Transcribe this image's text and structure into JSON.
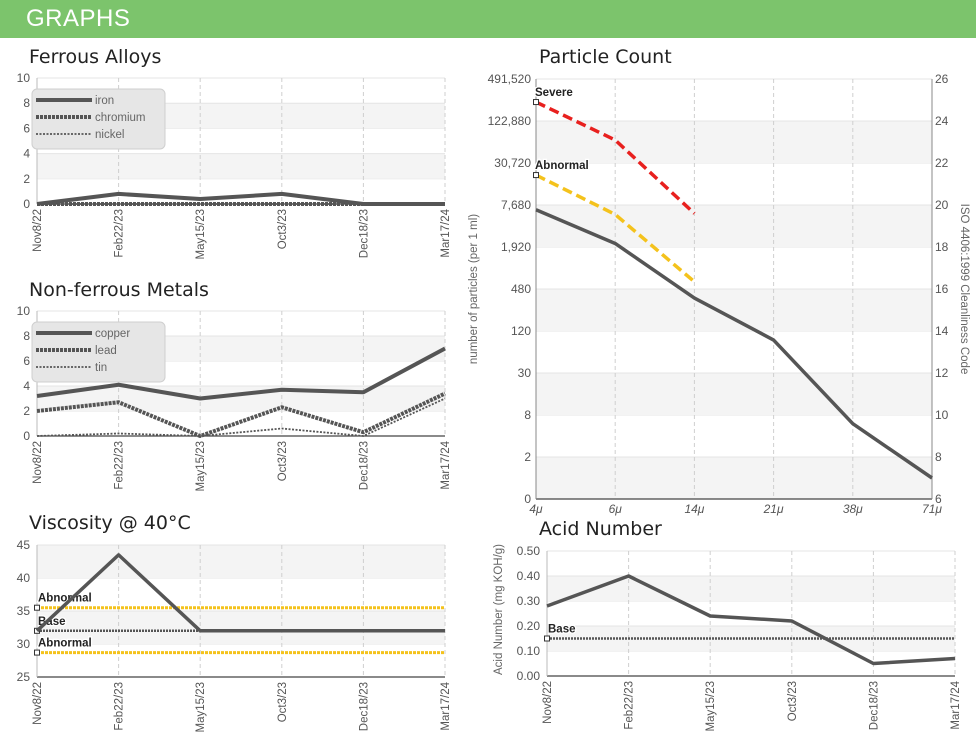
{
  "header": {
    "title": "GRAPHS"
  },
  "colors": {
    "banner": "#7cc46c",
    "series": "#555555",
    "severe": "#e8201e",
    "abnormal": "#f4c21c",
    "base": "#555555"
  },
  "chart_data": [
    {
      "id": "ferrous",
      "type": "line",
      "title": "Ferrous Alloys",
      "categories": [
        "Nov8/22",
        "Feb22/23",
        "May15/23",
        "Oct3/23",
        "Dec18/23",
        "Mar17/24"
      ],
      "ylim": [
        0,
        10
      ],
      "yticks": [
        "0",
        "2",
        "4",
        "6",
        "8",
        "10"
      ],
      "legend": "top-left",
      "series": [
        {
          "name": "iron",
          "values": [
            0,
            0.8,
            0.4,
            0.8,
            0,
            0
          ]
        },
        {
          "name": "chromium",
          "values": [
            0,
            0,
            0,
            0,
            0,
            0
          ]
        },
        {
          "name": "nickel",
          "values": [
            0,
            0,
            0,
            0,
            0,
            0
          ]
        }
      ]
    },
    {
      "id": "nonferrous",
      "type": "line",
      "title": "Non-ferrous Metals",
      "categories": [
        "Nov8/22",
        "Feb22/23",
        "May15/23",
        "Oct3/23",
        "Dec18/23",
        "Mar17/24"
      ],
      "ylim": [
        0,
        10
      ],
      "yticks": [
        "0",
        "2",
        "4",
        "6",
        "8",
        "10"
      ],
      "legend": "top-left",
      "series": [
        {
          "name": "copper",
          "values": [
            3.2,
            4.1,
            3.0,
            3.7,
            3.5,
            7.0
          ]
        },
        {
          "name": "lead",
          "values": [
            2.0,
            2.7,
            0,
            2.3,
            0.3,
            3.4
          ]
        },
        {
          "name": "tin",
          "values": [
            0,
            0.2,
            0,
            0.6,
            0,
            3.0
          ]
        }
      ]
    },
    {
      "id": "viscosity",
      "type": "line",
      "title": "Viscosity @ 40°C",
      "categories": [
        "Nov8/22",
        "Feb22/23",
        "May15/23",
        "Oct3/23",
        "Dec18/23",
        "Mar17/24"
      ],
      "ylim": [
        25,
        45
      ],
      "yticks": [
        "25",
        "30",
        "35",
        "40",
        "45"
      ],
      "series": [
        {
          "values": [
            32,
            43.5,
            32,
            32,
            32,
            32
          ]
        }
      ],
      "limits": [
        {
          "label": "Abnormal",
          "value": 35.5
        },
        {
          "label": "Base",
          "value": 32
        },
        {
          "label": "Abnormal",
          "value": 28.7
        }
      ]
    },
    {
      "id": "particle",
      "type": "line",
      "title": "Particle Count",
      "categories": [
        "4μ",
        "6μ",
        "14μ",
        "21μ",
        "38μ",
        "71μ"
      ],
      "ylabel": "number of particles (per 1 ml)",
      "ylabel_right": "ISO 4406:1999 Cleanliness Code",
      "yticks": [
        "0",
        "2",
        "8",
        "30",
        "120",
        "480",
        "1,920",
        "7,680",
        "30,720",
        "122,880",
        "491,520"
      ],
      "yticks_right": [
        "6",
        "8",
        "10",
        "12",
        "14",
        "16",
        "18",
        "20",
        "22",
        "24",
        "26"
      ],
      "series": [
        {
          "values": [
            7000,
            2300,
            380,
            95,
            6,
            1
          ]
        }
      ],
      "limits": [
        {
          "label": "Severe",
          "values": [
            245000,
            70000,
            6200
          ]
        },
        {
          "label": "Abnormal",
          "values": [
            22000,
            6000,
            650
          ]
        }
      ]
    },
    {
      "id": "acid",
      "type": "line",
      "title": "Acid Number",
      "categories": [
        "Nov8/22",
        "Feb22/23",
        "May15/23",
        "Oct3/23",
        "Dec18/23",
        "Mar17/24"
      ],
      "ylabel": "Acid Number (mg KOH/g)",
      "ylim": [
        0,
        0.5
      ],
      "yticks": [
        "0.00",
        "0.10",
        "0.20",
        "0.30",
        "0.40",
        "0.50"
      ],
      "series": [
        {
          "values": [
            0.28,
            0.4,
            0.24,
            0.22,
            0.05,
            0.07
          ]
        }
      ],
      "limits": [
        {
          "label": "Base",
          "value": 0.15
        }
      ]
    }
  ]
}
